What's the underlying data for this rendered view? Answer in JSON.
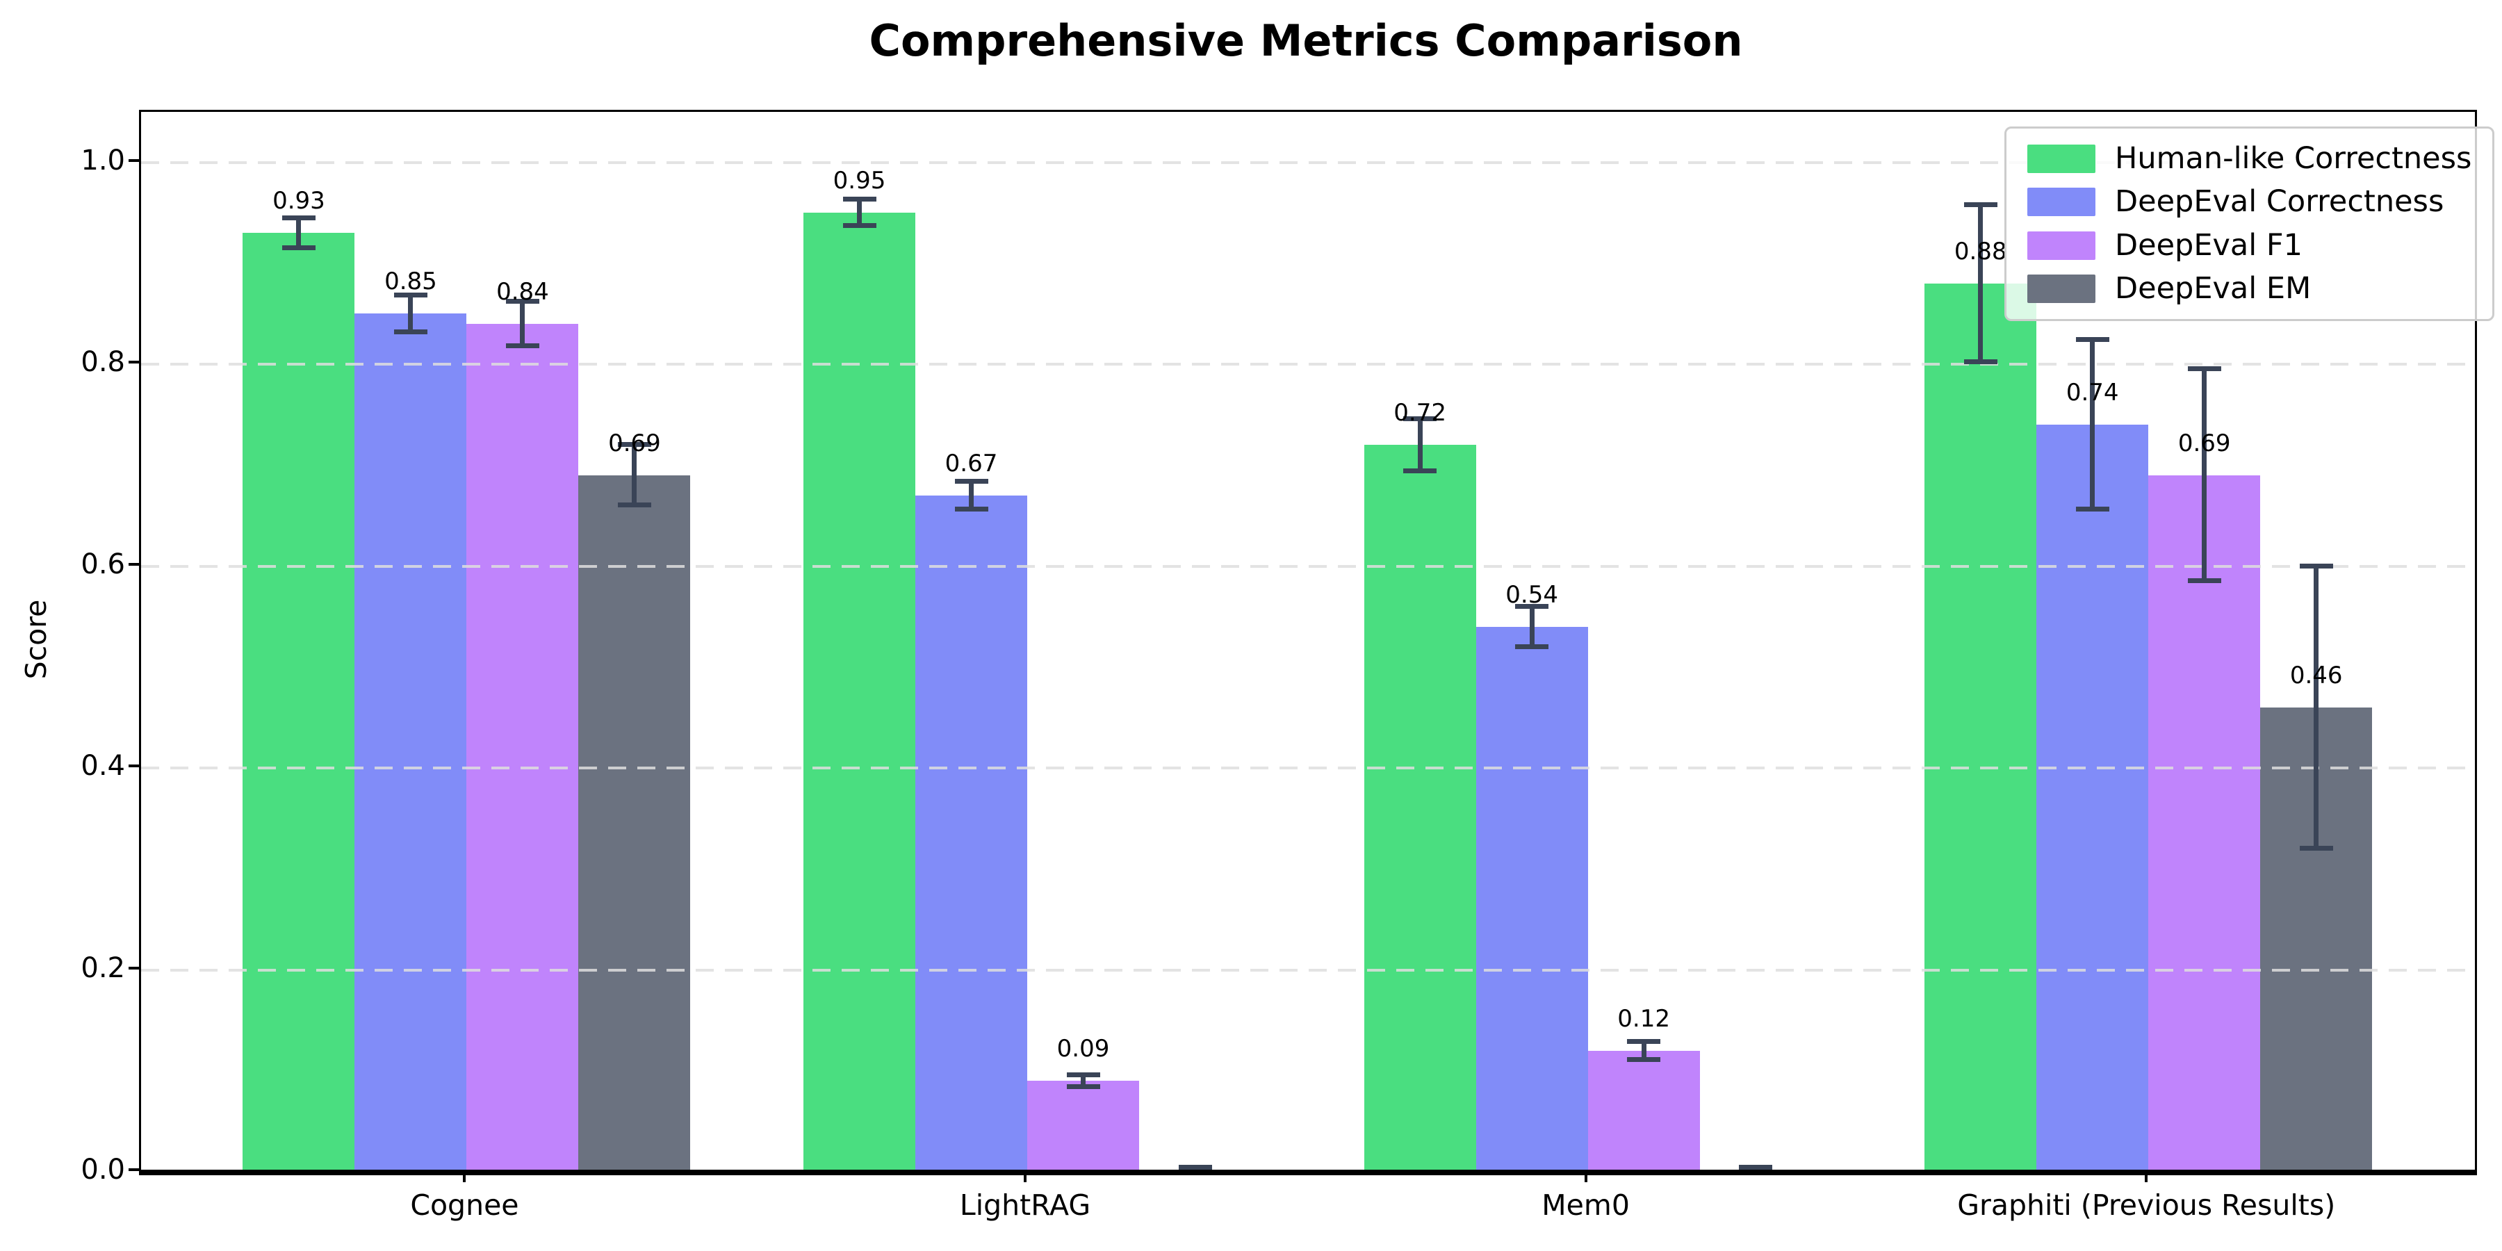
{
  "chart_data": {
    "type": "bar",
    "title": "Comprehensive Metrics Comparison",
    "xlabel": "",
    "ylabel": "Score",
    "categories": [
      "Cognee",
      "LightRAG",
      "Mem0",
      "Graphiti (Previous Results)"
    ],
    "series": [
      {
        "name": "Human-like Correctness",
        "color": "#4ade80",
        "values": [
          0.93,
          0.95,
          0.72,
          0.88
        ],
        "errors": [
          0.015,
          0.013,
          0.026,
          0.078
        ],
        "bar_labels": [
          "0.93",
          "0.95",
          "0.72",
          "0.88"
        ]
      },
      {
        "name": "DeepEval Correctness",
        "color": "#818cf8",
        "values": [
          0.85,
          0.67,
          0.54,
          0.74
        ],
        "errors": [
          0.018,
          0.014,
          0.02,
          0.084
        ],
        "bar_labels": [
          "0.85",
          "0.67",
          "0.54",
          "0.74"
        ]
      },
      {
        "name": "DeepEval F1",
        "color": "#c084fc",
        "values": [
          0.84,
          0.09,
          0.12,
          0.69
        ],
        "errors": [
          0.022,
          0.006,
          0.009,
          0.105
        ],
        "bar_labels": [
          "0.84",
          "0.09",
          "0.12",
          "0.69"
        ]
      },
      {
        "name": "DeepEval EM",
        "color": "#6b7280",
        "values": [
          0.69,
          0.0,
          0.0,
          0.46
        ],
        "errors": [
          0.03,
          0.004,
          0.004,
          0.14
        ],
        "bar_labels": [
          "0.69",
          "",
          "",
          "0.46"
        ]
      }
    ],
    "ylim": [
      0,
      1.05
    ],
    "yticks": [
      0.0,
      0.2,
      0.4,
      0.6,
      0.8,
      1.0
    ],
    "ytick_labels": [
      "0.0",
      "0.2",
      "0.4",
      "0.6",
      "0.8",
      "1.0"
    ],
    "grid": "horizontal-dashed",
    "legend_position": "upper-right",
    "error_bar_color": "#3a4457"
  }
}
